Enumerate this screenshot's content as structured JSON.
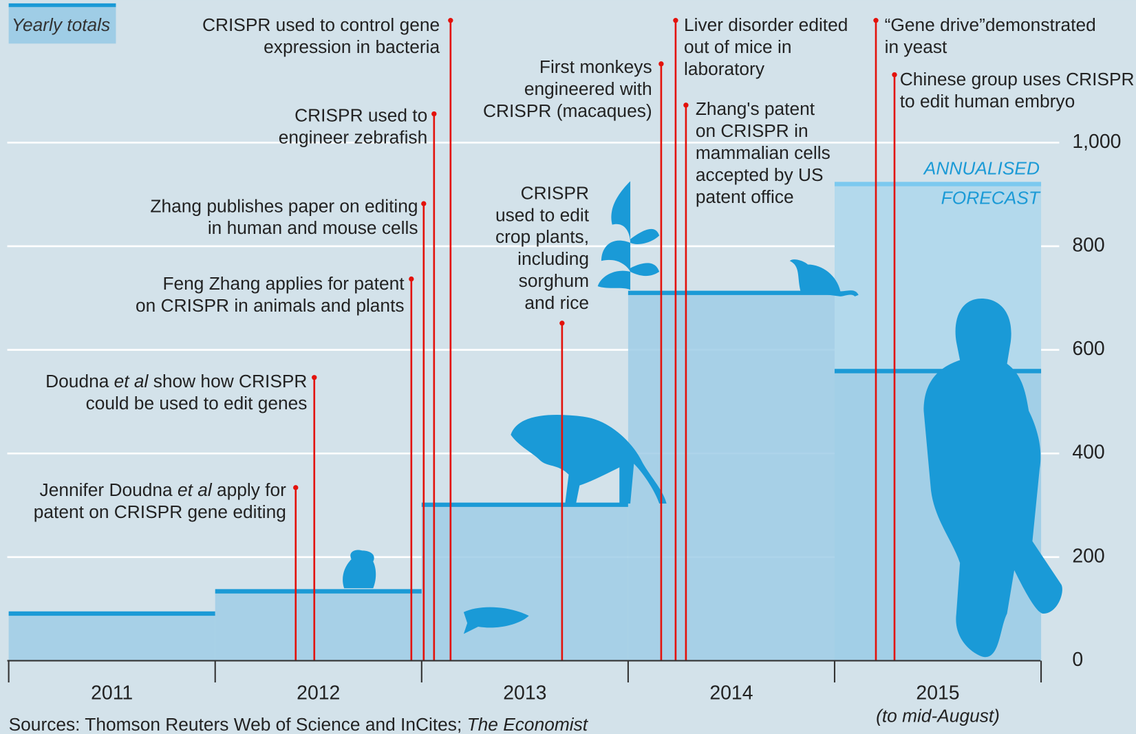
{
  "chart_data": {
    "type": "step",
    "label": "Yearly totals",
    "categories": [
      "2011",
      "2012",
      "2013",
      "2014",
      "2015"
    ],
    "category_note": "(to mid-August)",
    "values": [
      91,
      134,
      301,
      710,
      559
    ],
    "forecast": {
      "label": [
        "ANNUALISED",
        "FORECAST"
      ],
      "value": 920
    },
    "color": "#1b9ad6",
    "fill": "#9fcde6",
    "ylim": [
      0,
      1275
    ],
    "yticks": [
      0,
      200,
      400,
      600,
      800,
      {
        "value": 1000,
        "label": "1,000"
      }
    ],
    "xlim": [
      2011,
      2016
    ],
    "grid": true,
    "event_color": "#e3120b",
    "events": [
      {
        "x": 2012.39,
        "lines": [
          [
            "Jennifer Doudna ",
            "et al",
            " apply for"
          ],
          [
            "patent on CRISPR gene editing"
          ]
        ]
      },
      {
        "x": 2012.48,
        "lines": [
          [
            "Doudna ",
            "et al",
            " show how CRISPR"
          ],
          [
            "could be used to edit genes"
          ]
        ]
      },
      {
        "x": 2012.95,
        "lines": [
          [
            "Feng Zhang applies for patent"
          ],
          [
            "on CRISPR in animals and plants"
          ]
        ]
      },
      {
        "x": 2013.01,
        "lines": [
          [
            "Zhang publishes paper on editing"
          ],
          [
            "in human and mouse cells"
          ]
        ]
      },
      {
        "x": 2013.06,
        "lines": [
          [
            "CRISPR used to"
          ],
          [
            "engineer zebrafish"
          ]
        ]
      },
      {
        "x": 2013.14,
        "lines": [
          [
            "CRISPR used to control gene"
          ],
          [
            "expression in bacteria"
          ]
        ]
      },
      {
        "x": 2013.68,
        "lines": [
          [
            "CRISPR"
          ],
          [
            "used to edit"
          ],
          [
            "crop plants,"
          ],
          [
            "including"
          ],
          [
            "sorghum"
          ],
          [
            "and rice"
          ]
        ]
      },
      {
        "x": 2014.16,
        "lines": [
          [
            "First monkeys"
          ],
          [
            "engineered with"
          ],
          [
            "CRISPR (macaques)"
          ]
        ]
      },
      {
        "x": 2014.23,
        "lines": [
          [
            "Liver disorder edited"
          ],
          [
            "out of mice in"
          ],
          [
            "laboratory"
          ]
        ]
      },
      {
        "x": 2014.28,
        "lines": [
          [
            "Zhang's patent"
          ],
          [
            "on CRISPR in"
          ],
          [
            "mammalian cells"
          ],
          [
            "accepted by US"
          ],
          [
            "patent office"
          ]
        ]
      },
      {
        "x": 2015.2,
        "lines": [
          [
            "“Gene drive”demonstrated"
          ],
          [
            "in yeast"
          ]
        ]
      },
      {
        "x": 2015.29,
        "lines": [
          [
            "Chinese group uses CRISPR"
          ],
          [
            "to edit human embryo"
          ]
        ]
      }
    ],
    "source": [
      "Sources: Thomson Reuters Web of Science and InCites; ",
      "The Economist"
    ]
  }
}
